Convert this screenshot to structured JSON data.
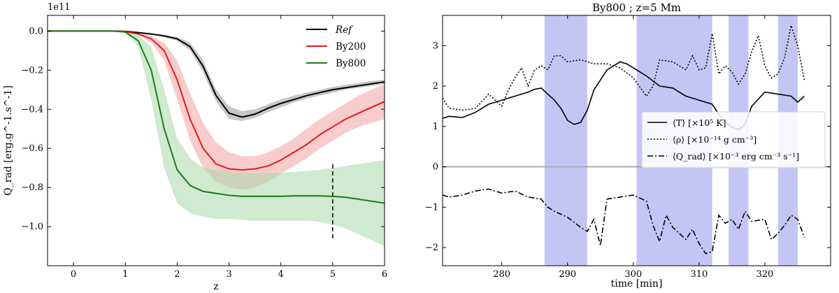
{
  "chart_data": [
    {
      "type": "line",
      "offset_label": "1e11",
      "xlabel": "z",
      "ylabel": "Q_rad [erg.g^-1.s^-1]",
      "xlim": [
        -0.5,
        6
      ],
      "ylim": [
        -120000000000.0,
        8000000000.0
      ],
      "xticks": [
        0,
        1,
        2,
        3,
        4,
        5,
        6
      ],
      "yticks": [
        0.0,
        -0.2,
        -0.4,
        -0.6,
        -0.8,
        -1.0
      ],
      "ytick_labels": [
        "0.0",
        "−0.2",
        "−0.4",
        "−0.6",
        "−0.8",
        "−1.0"
      ],
      "legend_position": "upper right",
      "vline": {
        "x": 5,
        "y_range": [
          -106000000000.0,
          -68000000000.0
        ],
        "style": "dashed"
      },
      "x": [
        -0.5,
        0.0,
        0.5,
        0.75,
        1.0,
        1.25,
        1.5,
        1.75,
        2.0,
        2.25,
        2.5,
        2.75,
        3.0,
        3.25,
        3.5,
        3.75,
        4.0,
        4.25,
        4.5,
        4.75,
        5.0,
        5.25,
        5.5,
        5.75,
        6.0
      ],
      "series": [
        {
          "name": "Ref",
          "color": "#000000",
          "band_color": "#999999",
          "values": [
            0,
            0,
            0,
            0,
            -200000000.0,
            -800000000.0,
            -1500000000.0,
            -2500000000.0,
            -4000000000.0,
            -8000000000.0,
            -18000000000.0,
            -33000000000.0,
            -42000000000.0,
            -44000000000.0,
            -42500000000.0,
            -39500000000.0,
            -37000000000.0,
            -35000000000.0,
            -33000000000.0,
            -31500000000.0,
            -30000000000.0,
            -29000000000.0,
            -28000000000.0,
            -27000000000.0,
            -26000000000.0
          ],
          "lower": [
            0,
            0,
            0,
            0,
            -200000000.0,
            -1000000000.0,
            -2000000000.0,
            -3000000000.0,
            -5000000000.0,
            -10000000000.0,
            -21000000000.0,
            -36000000000.0,
            -45000000000.0,
            -46000000000.0,
            -44500000000.0,
            -41500000000.0,
            -39000000000.0,
            -36500000000.0,
            -34500000000.0,
            -33000000000.0,
            -31500000000.0,
            -30000000000.0,
            -29000000000.0,
            -28000000000.0,
            -27000000000.0
          ],
          "upper": [
            0,
            0,
            0,
            0,
            -100000000.0,
            -600000000.0,
            -1200000000.0,
            -2000000000.0,
            -3000000000.0,
            -6000000000.0,
            -15000000000.0,
            -30000000000.0,
            -38500000000.0,
            -41000000000.0,
            -40000000000.0,
            -37500000000.0,
            -35000000000.0,
            -33000000000.0,
            -31500000000.0,
            -30000000000.0,
            -28500000000.0,
            -27500000000.0,
            -26500000000.0,
            -25500000000.0,
            -25000000000.0
          ]
        },
        {
          "name": "By200",
          "color": "#e31a1c",
          "band_color": "#f4a3a3",
          "values": [
            0,
            0,
            0,
            0,
            -300000000.0,
            -1500000000.0,
            -4000000000.0,
            -10000000000.0,
            -25000000000.0,
            -45000000000.0,
            -60000000000.0,
            -68000000000.0,
            -70500000000.0,
            -71000000000.0,
            -70500000000.0,
            -69000000000.0,
            -66000000000.0,
            -62000000000.0,
            -58000000000.0,
            -53000000000.0,
            -49000000000.0,
            -45000000000.0,
            -42000000000.0,
            -39000000000.0,
            -36000000000.0
          ],
          "lower": [
            0,
            0,
            0,
            0,
            -400000000.0,
            -2000000000.0,
            -6000000000.0,
            -15000000000.0,
            -35000000000.0,
            -56000000000.0,
            -70000000000.0,
            -77000000000.0,
            -80000000000.0,
            -81000000000.0,
            -80000000000.0,
            -77000000000.0,
            -73000000000.0,
            -69000000000.0,
            -65000000000.0,
            -60000000000.0,
            -56000000000.0,
            -52000000000.0,
            -49000000000.0,
            -47000000000.0,
            -45000000000.0
          ],
          "upper": [
            0,
            0,
            0,
            0,
            -200000000.0,
            -1000000000.0,
            -2500000000.0,
            -6000000000.0,
            -15000000000.0,
            -32000000000.0,
            -47000000000.0,
            -57000000000.0,
            -62000000000.0,
            -64000000000.0,
            -64000000000.0,
            -62000000000.0,
            -59000000000.0,
            -55000000000.0,
            -50000000000.0,
            -45000000000.0,
            -41000000000.0,
            -37000000000.0,
            -33000000000.0,
            -30000000000.0,
            -27000000000.0
          ]
        },
        {
          "name": "By800",
          "color": "#1b7a1b",
          "band_color": "#a8d8a8",
          "values": [
            0,
            0,
            0,
            0,
            -500000000.0,
            -5000000000.0,
            -20000000000.0,
            -50000000000.0,
            -71000000000.0,
            -79000000000.0,
            -82000000000.0,
            -83000000000.0,
            -84000000000.0,
            -84500000000.0,
            -84500000000.0,
            -84500000000.0,
            -84500000000.0,
            -84300000000.0,
            -84300000000.0,
            -84300000000.0,
            -84500000000.0,
            -85000000000.0,
            -86000000000.0,
            -87000000000.0,
            -88000000000.0
          ],
          "lower": [
            0,
            0,
            0,
            0,
            -1000000000.0,
            -8000000000.0,
            -35000000000.0,
            -70000000000.0,
            -88000000000.0,
            -93000000000.0,
            -95000000000.0,
            -96000000000.0,
            -96000000000.0,
            -96500000000.0,
            -97000000000.0,
            -97000000000.0,
            -97000000000.0,
            -97000000000.0,
            -97000000000.0,
            -97500000000.0,
            -99000000000.0,
            -101000000000.0,
            -104000000000.0,
            -107000000000.0,
            -110000000000.0
          ],
          "upper": [
            0,
            0,
            0,
            0,
            -200000000.0,
            -2000000000.0,
            -8000000000.0,
            -30000000000.0,
            -55000000000.0,
            -65000000000.0,
            -70000000000.0,
            -71000000000.0,
            -72000000000.0,
            -72500000000.0,
            -72500000000.0,
            -72500000000.0,
            -72500000000.0,
            -72000000000.0,
            -71500000000.0,
            -71000000000.0,
            -70000000000.0,
            -69000000000.0,
            -68000000000.0,
            -67000000000.0,
            -66000000000.0
          ]
        }
      ]
    },
    {
      "type": "line",
      "title": "By800 ; z=5 Mm",
      "xlabel": "time [min]",
      "xlim": [
        271,
        330
      ],
      "ylim": [
        -2.45,
        3.75
      ],
      "xticks": [
        280,
        290,
        300,
        310,
        320
      ],
      "yticks": [
        -2,
        -1,
        0,
        1,
        2,
        3
      ],
      "ytick_labels": [
        "−2",
        "−1",
        "0",
        "1",
        "2",
        "3"
      ],
      "hline": 0,
      "hline_color": "#aaaaaa",
      "shaded_regions": [
        [
          286.5,
          293
        ],
        [
          300.5,
          312
        ],
        [
          314.5,
          317.5
        ],
        [
          322,
          325
        ]
      ],
      "shade_color": "#c5c5f5",
      "legend_position": "center right",
      "legend_entries": [
        "⟨T⟩ [×10⁵ K]",
        "⟨ρ⟩ [×10⁻¹⁴ g cm⁻³]",
        "⟨Q_rad⟩ [×10⁻³ erg cm⁻³ s⁻¹]"
      ],
      "series": [
        {
          "name": "⟨T⟩ [×10⁵ K]",
          "style": "solid",
          "x": [
            271,
            272,
            274,
            276,
            278,
            280,
            282,
            284,
            285,
            286,
            288,
            289,
            290,
            291,
            292,
            293,
            294,
            296,
            298,
            299,
            300,
            302,
            304,
            306,
            308,
            310,
            312,
            313,
            314,
            315,
            316,
            317,
            318,
            320,
            322,
            324,
            325,
            326
          ],
          "values": [
            1.2,
            1.25,
            1.22,
            1.35,
            1.55,
            1.65,
            1.75,
            1.85,
            1.92,
            1.95,
            1.65,
            1.45,
            1.15,
            1.05,
            1.1,
            1.4,
            1.9,
            2.4,
            2.6,
            2.55,
            2.45,
            2.25,
            2.0,
            1.95,
            1.75,
            1.65,
            1.55,
            1.3,
            1.1,
            0.98,
            0.92,
            1.05,
            1.5,
            1.85,
            1.8,
            1.75,
            1.6,
            1.75
          ]
        },
        {
          "name": "⟨ρ⟩ [×10⁻¹⁴ g cm⁻³]",
          "style": "dotted",
          "x": [
            271,
            272,
            274,
            276,
            278,
            280,
            281,
            282,
            283,
            284,
            285,
            286,
            287,
            288,
            289,
            290,
            292,
            294,
            296,
            298,
            300,
            302,
            303,
            304,
            306,
            308,
            309,
            310,
            311,
            312,
            313,
            314,
            315,
            316,
            317,
            318,
            319,
            320,
            321,
            322,
            323,
            324,
            325,
            326
          ],
          "values": [
            1.7,
            1.45,
            1.4,
            1.45,
            1.8,
            1.5,
            1.9,
            2.2,
            2.45,
            2.0,
            2.4,
            2.5,
            2.4,
            2.75,
            2.75,
            2.6,
            2.65,
            2.55,
            2.55,
            2.45,
            2.2,
            1.75,
            2.0,
            2.65,
            2.6,
            2.4,
            2.75,
            2.4,
            2.45,
            3.3,
            2.3,
            2.5,
            2.35,
            2.05,
            2.3,
            2.85,
            3.25,
            2.5,
            2.2,
            2.3,
            2.7,
            3.5,
            3.0,
            2.15
          ]
        },
        {
          "name": "⟨Q_rad⟩ [×10⁻³ erg cm⁻³ s⁻¹]",
          "style": "dashdot",
          "x": [
            271,
            272,
            274,
            276,
            278,
            280,
            282,
            284,
            286,
            287,
            288,
            290,
            292,
            293,
            294,
            295,
            296,
            298,
            300,
            302,
            303,
            304,
            305,
            306,
            308,
            309,
            310,
            311,
            312,
            313,
            314,
            315,
            316,
            317,
            318,
            320,
            321,
            322,
            323,
            324,
            325,
            326
          ],
          "values": [
            -0.7,
            -0.75,
            -0.7,
            -0.6,
            -0.55,
            -0.65,
            -0.6,
            -0.75,
            -0.8,
            -1.0,
            -1.1,
            -1.25,
            -1.5,
            -1.6,
            -1.3,
            -1.95,
            -0.8,
            -0.75,
            -0.7,
            -0.85,
            -1.45,
            -1.85,
            -1.2,
            -1.5,
            -1.8,
            -1.55,
            -1.9,
            -2.15,
            -2.1,
            -1.2,
            -1.4,
            -1.3,
            -1.55,
            -1.1,
            -1.35,
            -1.3,
            -1.8,
            -1.65,
            -1.45,
            -1.2,
            -1.3,
            -1.75
          ]
        }
      ]
    }
  ]
}
